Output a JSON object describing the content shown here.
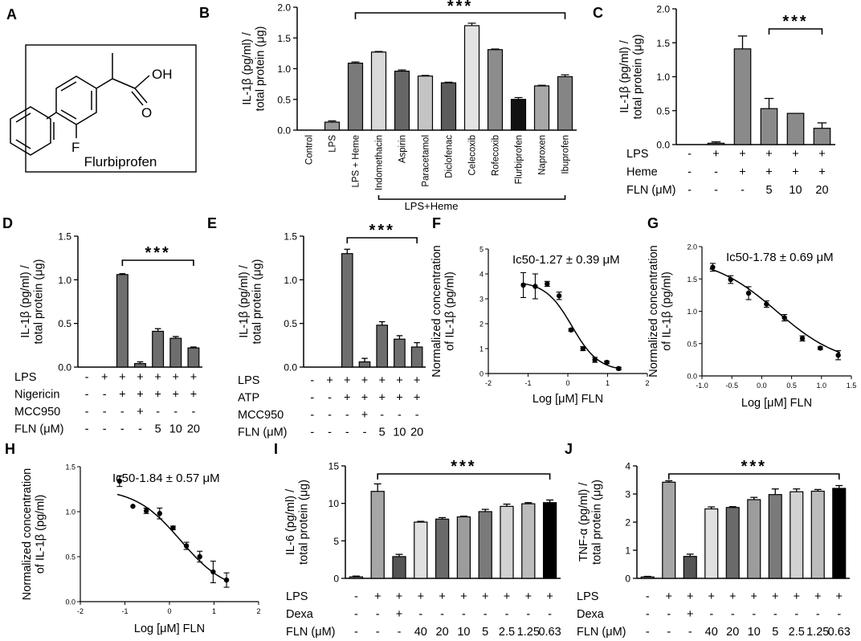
{
  "chart_data": [
    {
      "panel": "A",
      "type": "other",
      "caption": "Flurbiprofen",
      "atom_labels": [
        "OH",
        "O",
        "F"
      ]
    },
    {
      "panel": "B",
      "type": "bar",
      "ylabel": "IL-1β (pg/ml) / total protein (μg)",
      "ylim": [
        0,
        2.0
      ],
      "yticks": [
        "0.0",
        "0.5",
        "1.0",
        "1.5",
        "2.0"
      ],
      "categories": [
        "Control",
        "LPS",
        "LPS + Heme",
        "Indomethacin",
        "Aspirin",
        "Paracetamol",
        "Diclofenac",
        "Celecoxib",
        "Rofecoxib",
        "Flurbiprofen",
        "Naproxen",
        "Ibuprofen"
      ],
      "values": [
        0.0,
        0.13,
        1.09,
        1.27,
        0.96,
        0.88,
        0.77,
        1.7,
        1.31,
        0.5,
        0.72,
        0.87
      ],
      "errors": [
        0.0,
        0.02,
        0.02,
        0.01,
        0.02,
        0.01,
        0.01,
        0.04,
        0.01,
        0.03,
        0.01,
        0.03
      ],
      "fills": [
        "#9a9a9a",
        "#9a9a9a",
        "#7a7a7a",
        "#d9d9d9",
        "#666666",
        "#c4c4c4",
        "#5c5c5c",
        "#e3e3e3",
        "#8c8c8c",
        "#111111",
        "#a8a8a8",
        "#858585"
      ],
      "significance": "***",
      "group_label": "LPS+Heme"
    },
    {
      "panel": "C",
      "type": "bar",
      "ylabel": "IL-1β (pg/ml) / total protein (μg)",
      "ylim": [
        0,
        2.0
      ],
      "yticks": [
        "0.0",
        "0.5",
        "1.0",
        "1.5",
        "2.0"
      ],
      "values": [
        0.0,
        0.02,
        1.41,
        0.53,
        0.46,
        0.24
      ],
      "errors": [
        0.0,
        0.02,
        0.19,
        0.15,
        0.0,
        0.08
      ],
      "fills": [
        "#8a8a8a",
        "#8a8a8a",
        "#8a8a8a",
        "#8a8a8a",
        "#8a8a8a",
        "#8a8a8a"
      ],
      "significance": "***",
      "rows": [
        {
          "label": "LPS",
          "cells": [
            "-",
            "+",
            "+",
            "+",
            "+",
            "+"
          ]
        },
        {
          "label": "Heme",
          "cells": [
            "-",
            "-",
            "+",
            "+",
            "+",
            "+"
          ]
        },
        {
          "label": "FLN (μM)",
          "cells": [
            "-",
            "-",
            "-",
            "5",
            "10",
            "20"
          ]
        }
      ]
    },
    {
      "panel": "D",
      "type": "bar",
      "ylabel": "IL-1β (pg/ml) / total protein (μg)",
      "ylim": [
        0,
        1.5
      ],
      "yticks": [
        "0.0",
        "0.5",
        "1.0",
        "1.5"
      ],
      "values": [
        0.0,
        0.0,
        1.06,
        0.04,
        0.41,
        0.33,
        0.22
      ],
      "errors": [
        0.0,
        0.0,
        0.01,
        0.02,
        0.03,
        0.02,
        0.01
      ],
      "fills": [
        "#6e6e6e",
        "#6e6e6e",
        "#6e6e6e",
        "#6e6e6e",
        "#6e6e6e",
        "#6e6e6e",
        "#6e6e6e"
      ],
      "significance": "***",
      "rows": [
        {
          "label": "LPS",
          "cells": [
            "-",
            "+",
            "+",
            "+",
            "+",
            "+",
            "+"
          ]
        },
        {
          "label": "Nigericin",
          "cells": [
            "-",
            "-",
            "+",
            "+",
            "+",
            "+",
            "+"
          ]
        },
        {
          "label": "MCC950",
          "cells": [
            "-",
            "-",
            "-",
            "+",
            "-",
            "-",
            "-"
          ]
        },
        {
          "label": "FLN (μM)",
          "cells": [
            "-",
            "-",
            "-",
            "-",
            "5",
            "10",
            "20"
          ]
        }
      ]
    },
    {
      "panel": "E",
      "type": "bar",
      "ylabel": "IL-1β (pg/ml) / total protein (μg)",
      "ylim": [
        0,
        1.5
      ],
      "yticks": [
        "0.0",
        "0.5",
        "1.0",
        "1.5"
      ],
      "values": [
        0.0,
        0.0,
        1.3,
        0.06,
        0.48,
        0.32,
        0.23
      ],
      "errors": [
        0.0,
        0.0,
        0.05,
        0.04,
        0.04,
        0.04,
        0.05
      ],
      "fills": [
        "#6e6e6e",
        "#6e6e6e",
        "#6e6e6e",
        "#6e6e6e",
        "#6e6e6e",
        "#6e6e6e",
        "#6e6e6e"
      ],
      "significance": "***",
      "rows": [
        {
          "label": "LPS",
          "cells": [
            "-",
            "+",
            "+",
            "+",
            "+",
            "+",
            "+"
          ]
        },
        {
          "label": "ATP",
          "cells": [
            "-",
            "-",
            "+",
            "+",
            "+",
            "+",
            "+"
          ]
        },
        {
          "label": "MCC950",
          "cells": [
            "-",
            "-",
            "-",
            "+",
            "-",
            "-",
            "-"
          ]
        },
        {
          "label": "FLN (μM)",
          "cells": [
            "-",
            "-",
            "-",
            "-",
            "5",
            "10",
            "20"
          ]
        }
      ]
    },
    {
      "panel": "F",
      "type": "scatter",
      "xlabel": "Log [μM] FLN",
      "ylabel": "Normalized concentration of IL-1β (pg/ml)",
      "xlim": [
        -2,
        2
      ],
      "ylim": [
        0,
        5
      ],
      "xticks": [
        "-2",
        "-1",
        "0",
        "1",
        "2"
      ],
      "yticks": [
        "0",
        "1",
        "2",
        "3",
        "4",
        "5"
      ],
      "annotation": "Ic50-1.27 ± 0.39 μM",
      "x": [
        -1.12,
        -0.82,
        -0.52,
        -0.22,
        0.08,
        0.38,
        0.68,
        0.98,
        1.28
      ],
      "y": [
        3.55,
        3.5,
        3.6,
        3.12,
        1.75,
        1.0,
        0.55,
        0.45,
        0.2
      ],
      "yerr": [
        0.5,
        0.5,
        0.1,
        0.15,
        0.05,
        0.08,
        0.1,
        0.05,
        0.05
      ],
      "fit": {
        "top": 3.7,
        "bottom": 0.1,
        "log_ic50": 0.104,
        "hill": 1.3
      }
    },
    {
      "panel": "G",
      "type": "scatter",
      "xlabel": "Log [μM] FLN",
      "ylabel": "Normalized concentration of IL-1β (pg/ml)",
      "xlim": [
        -1,
        1.5
      ],
      "ylim": [
        0,
        2.0
      ],
      "xticks": [
        "-1.0",
        "-0.5",
        "0.0",
        "0.5",
        "1.0",
        "1.5"
      ],
      "yticks": [
        "0.0",
        "0.5",
        "1.0",
        "1.5",
        "2.0"
      ],
      "annotation": "Ic50-1.78 ± 0.69 μM",
      "x": [
        -0.82,
        -0.52,
        -0.22,
        0.08,
        0.38,
        0.68,
        0.98,
        1.28
      ],
      "y": [
        1.68,
        1.49,
        1.28,
        1.11,
        0.9,
        0.58,
        0.43,
        0.32
      ],
      "yerr": [
        0.06,
        0.06,
        0.1,
        0.05,
        0.05,
        0.04,
        0.02,
        0.07
      ],
      "fit": {
        "top": 1.85,
        "bottom": 0.15,
        "log_ic50": 0.25,
        "hill": 0.8
      }
    },
    {
      "panel": "H",
      "type": "scatter",
      "xlabel": "Log [μM] FLN",
      "ylabel": "Normalized concentration of IL-1β (pg/ml)",
      "xlim": [
        -2,
        2
      ],
      "ylim": [
        0,
        1.5
      ],
      "xticks": [
        "-2",
        "-1",
        "0",
        "1",
        "2"
      ],
      "yticks": [
        "0.0",
        "0.5",
        "1.0",
        "1.5"
      ],
      "annotation": "Ic50-1.84 ± 0.57 μM",
      "x": [
        -1.12,
        -0.82,
        -0.52,
        -0.22,
        0.08,
        0.38,
        0.68,
        0.98,
        1.28
      ],
      "y": [
        1.34,
        1.06,
        1.01,
        0.98,
        0.82,
        0.62,
        0.5,
        0.33,
        0.24
      ],
      "yerr": [
        0.06,
        0.0,
        0.03,
        0.06,
        0.02,
        0.04,
        0.06,
        0.12,
        0.08
      ],
      "fit": {
        "top": 1.26,
        "bottom": 0.1,
        "log_ic50": 0.25,
        "hill": 0.85
      }
    },
    {
      "panel": "I",
      "type": "bar",
      "ylabel": "IL-6 (pg/ml) / total protein (μg)",
      "ylim": [
        0,
        15
      ],
      "yticks": [
        "0",
        "5",
        "10",
        "15"
      ],
      "values": [
        0.2,
        11.6,
        2.9,
        7.5,
        7.9,
        8.2,
        8.9,
        9.6,
        9.95,
        10.1
      ],
      "errors": [
        0.1,
        1.0,
        0.3,
        0.1,
        0.2,
        0.1,
        0.3,
        0.3,
        0.15,
        0.35
      ],
      "fills": [
        "#9a9a9a",
        "#a6a6a6",
        "#555555",
        "#e0e0e0",
        "#6a6a6a",
        "#9c9c9c",
        "#7a7a7a",
        "#d2d2d2",
        "#bcbcbc",
        "#000000"
      ],
      "significance": "***",
      "rows": [
        {
          "label": "LPS",
          "cells": [
            "-",
            "+",
            "+",
            "+",
            "+",
            "+",
            "+",
            "+",
            "+",
            "+"
          ]
        },
        {
          "label": "Dexa",
          "cells": [
            "-",
            "-",
            "+",
            "-",
            "-",
            "-",
            "-",
            "-",
            "-",
            "-"
          ]
        },
        {
          "label": "FLN (μM)",
          "cells": [
            "-",
            "-",
            "-",
            "40",
            "20",
            "10",
            "5",
            "2.5",
            "1.25",
            "0.63"
          ]
        }
      ]
    },
    {
      "panel": "J",
      "type": "bar",
      "ylabel": "TNF-α (pg/ml) / total protein (μg)",
      "ylim": [
        0,
        4
      ],
      "yticks": [
        "0",
        "1",
        "2",
        "3",
        "4"
      ],
      "values": [
        0.05,
        3.42,
        0.78,
        2.47,
        2.52,
        2.8,
        2.98,
        3.08,
        3.1,
        3.2
      ],
      "errors": [
        0.02,
        0.05,
        0.08,
        0.07,
        0.03,
        0.08,
        0.2,
        0.1,
        0.06,
        0.1
      ],
      "fills": [
        "#9a9a9a",
        "#a6a6a6",
        "#555555",
        "#e0e0e0",
        "#6a6a6a",
        "#9c9c9c",
        "#7a7a7a",
        "#d2d2d2",
        "#bcbcbc",
        "#000000"
      ],
      "significance": "***",
      "rows": [
        {
          "label": "LPS",
          "cells": [
            "-",
            "+",
            "+",
            "+",
            "+",
            "+",
            "+",
            "+",
            "+",
            "+"
          ]
        },
        {
          "label": "Dexa",
          "cells": [
            "-",
            "-",
            "+",
            "-",
            "-",
            "-",
            "-",
            "-",
            "-",
            "-"
          ]
        },
        {
          "label": "FLN (μM)",
          "cells": [
            "-",
            "-",
            "-",
            "40",
            "20",
            "10",
            "5",
            "2.5",
            "1.25",
            "0.63"
          ]
        }
      ]
    }
  ]
}
